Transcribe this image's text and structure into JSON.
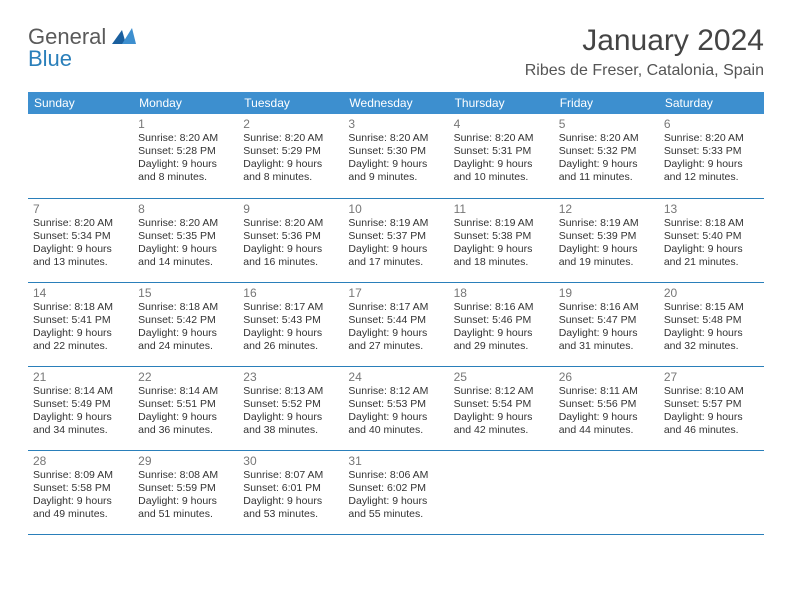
{
  "logo": {
    "text_top": "General",
    "text_bottom": "Blue"
  },
  "title": "January 2024",
  "location": "Ribes de Freser, Catalonia, Spain",
  "colors": {
    "header_bg": "#3d8fcf",
    "header_text": "#ffffff",
    "row_border": "#2a7fba",
    "title_color": "#444444",
    "body_text": "#333333",
    "daynum_color": "#777777",
    "logo_gray": "#5a5a5a",
    "logo_blue": "#2a7fba"
  },
  "typography": {
    "title_fontsize": 30,
    "location_fontsize": 16,
    "dayheader_fontsize": 12,
    "cell_fontsize": 10.5,
    "logo_fontsize": 22
  },
  "day_headers": [
    "Sunday",
    "Monday",
    "Tuesday",
    "Wednesday",
    "Thursday",
    "Friday",
    "Saturday"
  ],
  "weeks": [
    [
      null,
      {
        "n": "1",
        "sr": "Sunrise: 8:20 AM",
        "ss": "Sunset: 5:28 PM",
        "dl1": "Daylight: 9 hours",
        "dl2": "and 8 minutes."
      },
      {
        "n": "2",
        "sr": "Sunrise: 8:20 AM",
        "ss": "Sunset: 5:29 PM",
        "dl1": "Daylight: 9 hours",
        "dl2": "and 8 minutes."
      },
      {
        "n": "3",
        "sr": "Sunrise: 8:20 AM",
        "ss": "Sunset: 5:30 PM",
        "dl1": "Daylight: 9 hours",
        "dl2": "and 9 minutes."
      },
      {
        "n": "4",
        "sr": "Sunrise: 8:20 AM",
        "ss": "Sunset: 5:31 PM",
        "dl1": "Daylight: 9 hours",
        "dl2": "and 10 minutes."
      },
      {
        "n": "5",
        "sr": "Sunrise: 8:20 AM",
        "ss": "Sunset: 5:32 PM",
        "dl1": "Daylight: 9 hours",
        "dl2": "and 11 minutes."
      },
      {
        "n": "6",
        "sr": "Sunrise: 8:20 AM",
        "ss": "Sunset: 5:33 PM",
        "dl1": "Daylight: 9 hours",
        "dl2": "and 12 minutes."
      }
    ],
    [
      {
        "n": "7",
        "sr": "Sunrise: 8:20 AM",
        "ss": "Sunset: 5:34 PM",
        "dl1": "Daylight: 9 hours",
        "dl2": "and 13 minutes."
      },
      {
        "n": "8",
        "sr": "Sunrise: 8:20 AM",
        "ss": "Sunset: 5:35 PM",
        "dl1": "Daylight: 9 hours",
        "dl2": "and 14 minutes."
      },
      {
        "n": "9",
        "sr": "Sunrise: 8:20 AM",
        "ss": "Sunset: 5:36 PM",
        "dl1": "Daylight: 9 hours",
        "dl2": "and 16 minutes."
      },
      {
        "n": "10",
        "sr": "Sunrise: 8:19 AM",
        "ss": "Sunset: 5:37 PM",
        "dl1": "Daylight: 9 hours",
        "dl2": "and 17 minutes."
      },
      {
        "n": "11",
        "sr": "Sunrise: 8:19 AM",
        "ss": "Sunset: 5:38 PM",
        "dl1": "Daylight: 9 hours",
        "dl2": "and 18 minutes."
      },
      {
        "n": "12",
        "sr": "Sunrise: 8:19 AM",
        "ss": "Sunset: 5:39 PM",
        "dl1": "Daylight: 9 hours",
        "dl2": "and 19 minutes."
      },
      {
        "n": "13",
        "sr": "Sunrise: 8:18 AM",
        "ss": "Sunset: 5:40 PM",
        "dl1": "Daylight: 9 hours",
        "dl2": "and 21 minutes."
      }
    ],
    [
      {
        "n": "14",
        "sr": "Sunrise: 8:18 AM",
        "ss": "Sunset: 5:41 PM",
        "dl1": "Daylight: 9 hours",
        "dl2": "and 22 minutes."
      },
      {
        "n": "15",
        "sr": "Sunrise: 8:18 AM",
        "ss": "Sunset: 5:42 PM",
        "dl1": "Daylight: 9 hours",
        "dl2": "and 24 minutes."
      },
      {
        "n": "16",
        "sr": "Sunrise: 8:17 AM",
        "ss": "Sunset: 5:43 PM",
        "dl1": "Daylight: 9 hours",
        "dl2": "and 26 minutes."
      },
      {
        "n": "17",
        "sr": "Sunrise: 8:17 AM",
        "ss": "Sunset: 5:44 PM",
        "dl1": "Daylight: 9 hours",
        "dl2": "and 27 minutes."
      },
      {
        "n": "18",
        "sr": "Sunrise: 8:16 AM",
        "ss": "Sunset: 5:46 PM",
        "dl1": "Daylight: 9 hours",
        "dl2": "and 29 minutes."
      },
      {
        "n": "19",
        "sr": "Sunrise: 8:16 AM",
        "ss": "Sunset: 5:47 PM",
        "dl1": "Daylight: 9 hours",
        "dl2": "and 31 minutes."
      },
      {
        "n": "20",
        "sr": "Sunrise: 8:15 AM",
        "ss": "Sunset: 5:48 PM",
        "dl1": "Daylight: 9 hours",
        "dl2": "and 32 minutes."
      }
    ],
    [
      {
        "n": "21",
        "sr": "Sunrise: 8:14 AM",
        "ss": "Sunset: 5:49 PM",
        "dl1": "Daylight: 9 hours",
        "dl2": "and 34 minutes."
      },
      {
        "n": "22",
        "sr": "Sunrise: 8:14 AM",
        "ss": "Sunset: 5:51 PM",
        "dl1": "Daylight: 9 hours",
        "dl2": "and 36 minutes."
      },
      {
        "n": "23",
        "sr": "Sunrise: 8:13 AM",
        "ss": "Sunset: 5:52 PM",
        "dl1": "Daylight: 9 hours",
        "dl2": "and 38 minutes."
      },
      {
        "n": "24",
        "sr": "Sunrise: 8:12 AM",
        "ss": "Sunset: 5:53 PM",
        "dl1": "Daylight: 9 hours",
        "dl2": "and 40 minutes."
      },
      {
        "n": "25",
        "sr": "Sunrise: 8:12 AM",
        "ss": "Sunset: 5:54 PM",
        "dl1": "Daylight: 9 hours",
        "dl2": "and 42 minutes."
      },
      {
        "n": "26",
        "sr": "Sunrise: 8:11 AM",
        "ss": "Sunset: 5:56 PM",
        "dl1": "Daylight: 9 hours",
        "dl2": "and 44 minutes."
      },
      {
        "n": "27",
        "sr": "Sunrise: 8:10 AM",
        "ss": "Sunset: 5:57 PM",
        "dl1": "Daylight: 9 hours",
        "dl2": "and 46 minutes."
      }
    ],
    [
      {
        "n": "28",
        "sr": "Sunrise: 8:09 AM",
        "ss": "Sunset: 5:58 PM",
        "dl1": "Daylight: 9 hours",
        "dl2": "and 49 minutes."
      },
      {
        "n": "29",
        "sr": "Sunrise: 8:08 AM",
        "ss": "Sunset: 5:59 PM",
        "dl1": "Daylight: 9 hours",
        "dl2": "and 51 minutes."
      },
      {
        "n": "30",
        "sr": "Sunrise: 8:07 AM",
        "ss": "Sunset: 6:01 PM",
        "dl1": "Daylight: 9 hours",
        "dl2": "and 53 minutes."
      },
      {
        "n": "31",
        "sr": "Sunrise: 8:06 AM",
        "ss": "Sunset: 6:02 PM",
        "dl1": "Daylight: 9 hours",
        "dl2": "and 55 minutes."
      },
      null,
      null,
      null
    ]
  ]
}
